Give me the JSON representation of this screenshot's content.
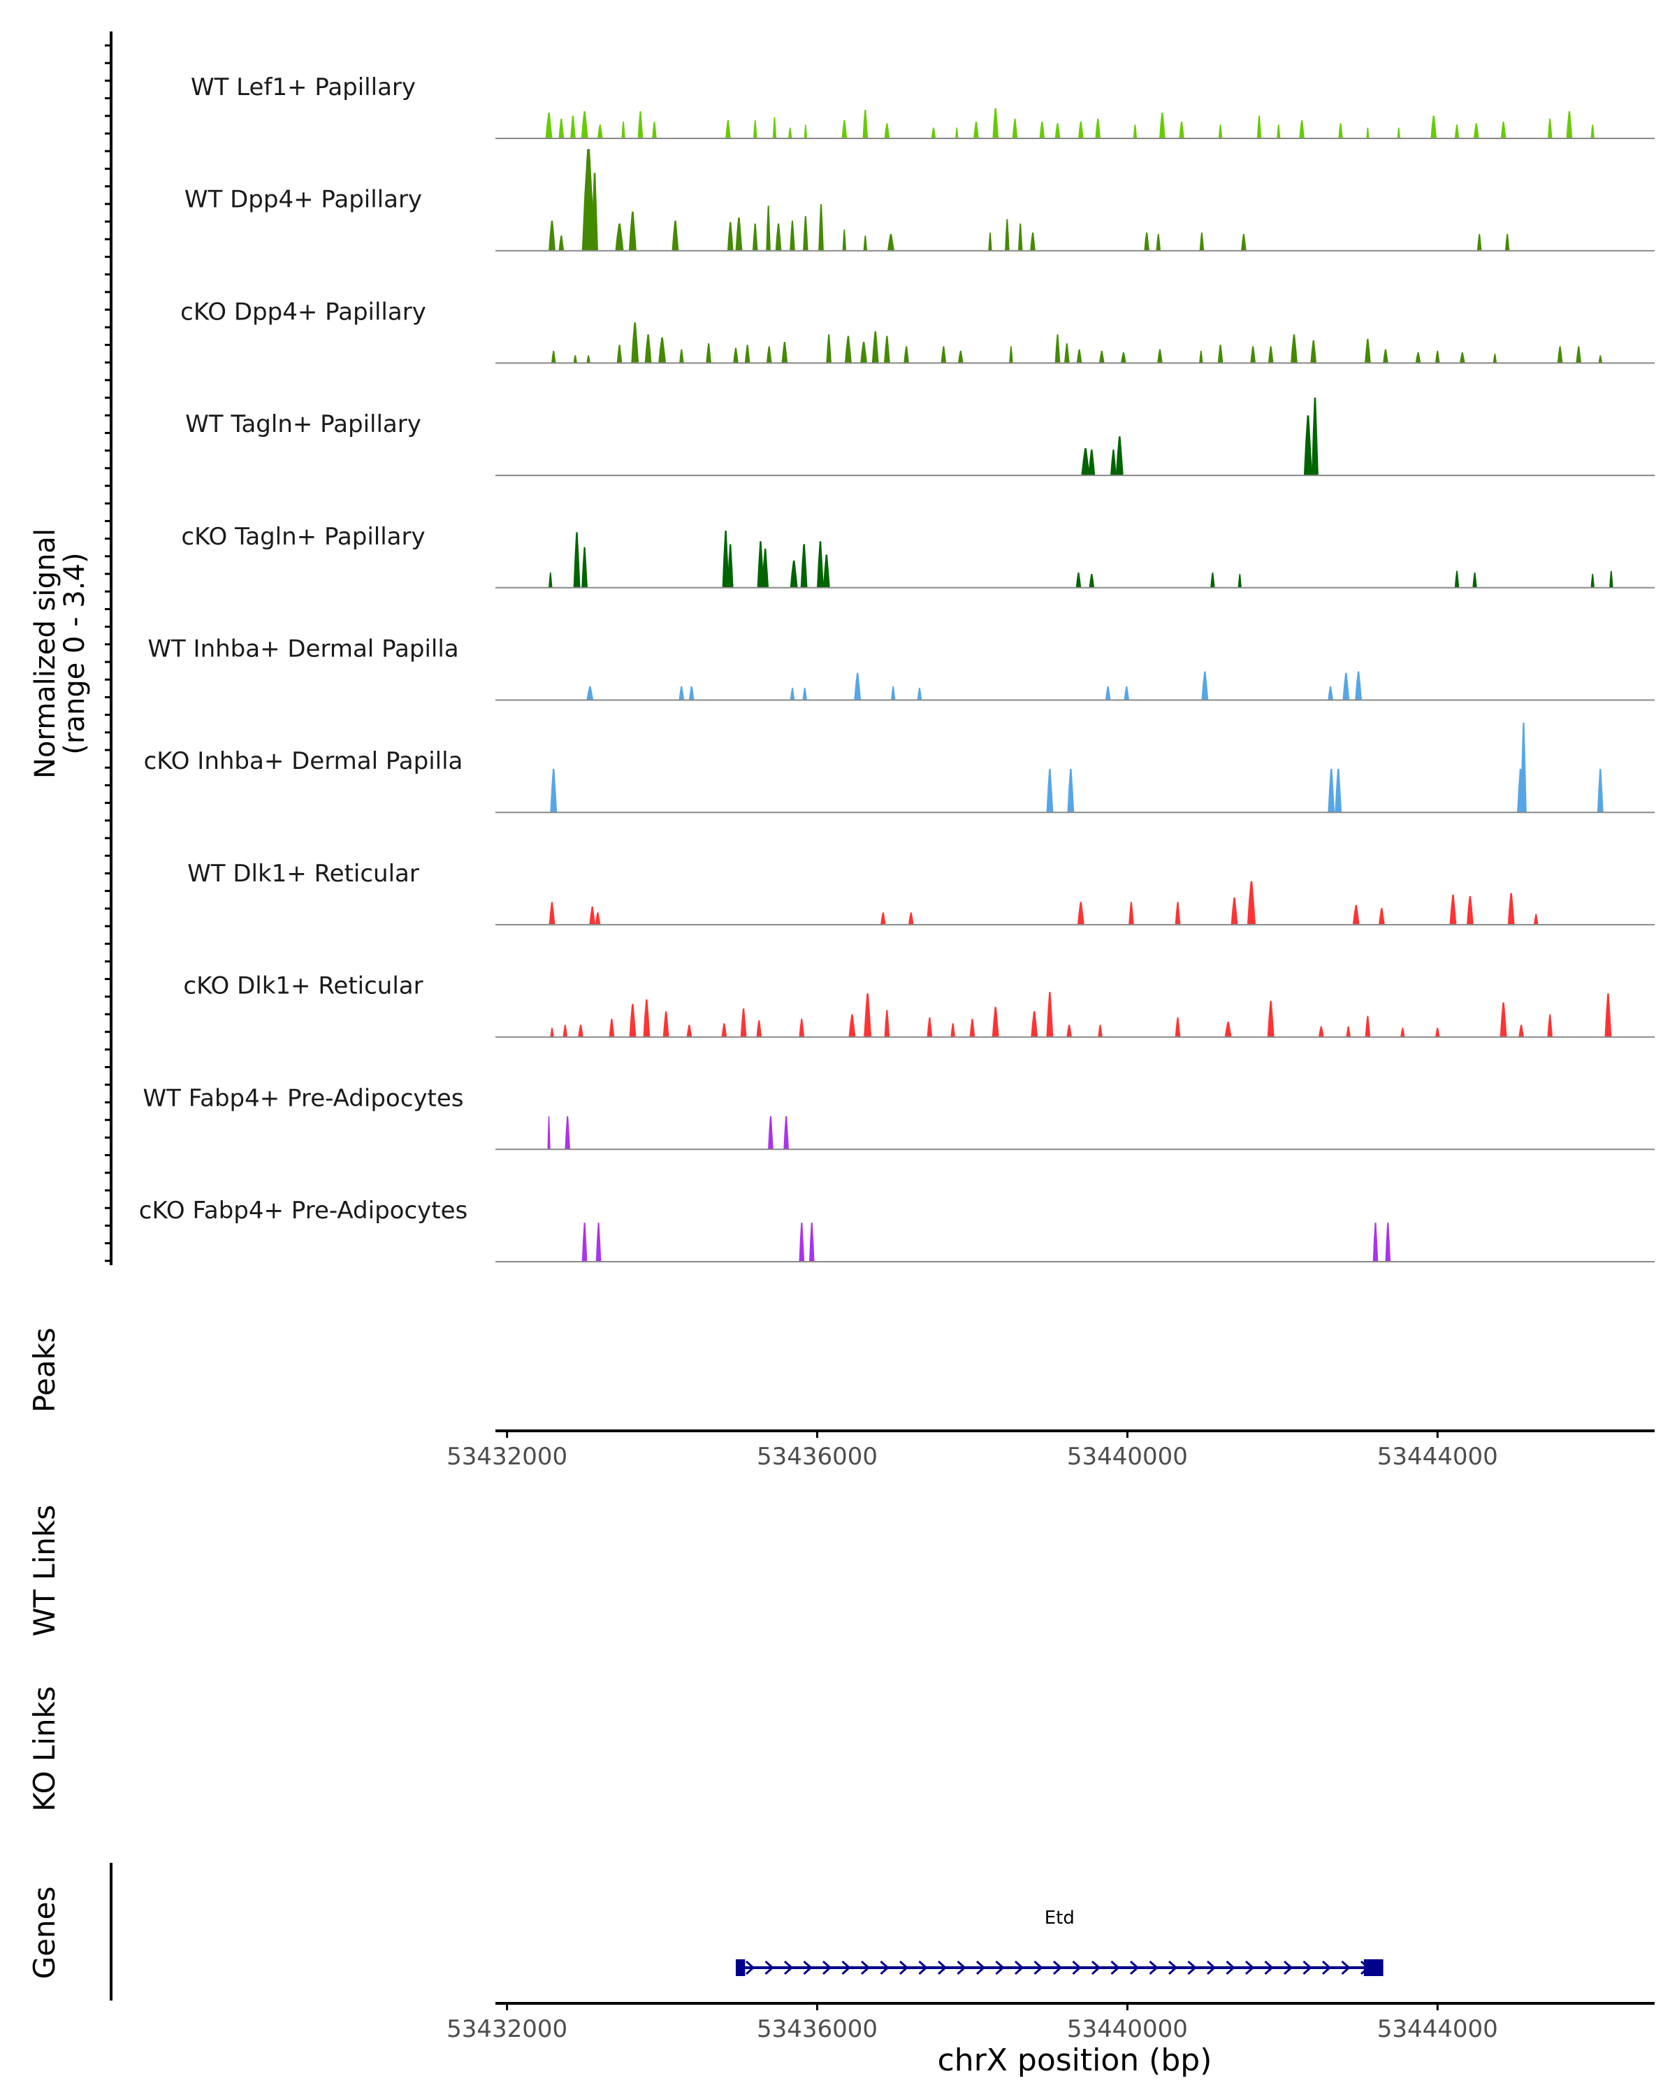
{
  "chart_data": {
    "type": "area",
    "title": "",
    "y_axis_title": "Normalized signal",
    "y_range_label": "(range 0 - 3.4)",
    "y_range": [
      0,
      3.4
    ],
    "x_axis_title": "chrX position (bp)",
    "x_range": [
      53431850,
      53446800
    ],
    "x_ticks": [
      53432000,
      53436000,
      53440000,
      53444000
    ],
    "x_tick_labels": [
      "53432000",
      "53436000",
      "53440000",
      "53444000"
    ],
    "section_labels": {
      "peaks": "Peaks",
      "wt_links": "WT Links",
      "ko_links": "KO Links",
      "genes": "Genes"
    },
    "tracks": [
      {
        "name": "WT Lef1+ Papillary",
        "color": "#66cc00",
        "peaks": [
          [
            53432540,
            40,
            0.85
          ],
          [
            53432700,
            30,
            0.65
          ],
          [
            53432850,
            30,
            0.75
          ],
          [
            53433000,
            40,
            0.9
          ],
          [
            53433200,
            30,
            0.45
          ],
          [
            53433500,
            20,
            0.55
          ],
          [
            53433720,
            30,
            0.9
          ],
          [
            53433900,
            25,
            0.55
          ],
          [
            53434850,
            30,
            0.6
          ],
          [
            53435200,
            20,
            0.6
          ],
          [
            53435450,
            20,
            0.7
          ],
          [
            53435650,
            20,
            0.35
          ],
          [
            53435850,
            15,
            0.45
          ],
          [
            53436350,
            30,
            0.6
          ],
          [
            53436620,
            30,
            0.95
          ],
          [
            53436900,
            30,
            0.5
          ],
          [
            53437500,
            25,
            0.35
          ],
          [
            53437800,
            15,
            0.35
          ],
          [
            53438050,
            30,
            0.55
          ],
          [
            53438300,
            35,
            1.0
          ],
          [
            53438550,
            30,
            0.65
          ],
          [
            53438900,
            30,
            0.55
          ],
          [
            53439100,
            30,
            0.5
          ],
          [
            53439400,
            30,
            0.55
          ],
          [
            53439620,
            30,
            0.65
          ],
          [
            53440100,
            20,
            0.45
          ],
          [
            53440450,
            35,
            0.85
          ],
          [
            53440700,
            30,
            0.55
          ],
          [
            53441200,
            20,
            0.45
          ],
          [
            53441700,
            25,
            0.75
          ],
          [
            53441950,
            20,
            0.45
          ],
          [
            53442250,
            30,
            0.6
          ],
          [
            53442750,
            25,
            0.5
          ],
          [
            53443100,
            15,
            0.35
          ],
          [
            53443500,
            15,
            0.35
          ],
          [
            53443950,
            35,
            0.75
          ],
          [
            53444250,
            25,
            0.45
          ],
          [
            53444500,
            30,
            0.5
          ],
          [
            53444850,
            30,
            0.55
          ],
          [
            53445450,
            25,
            0.65
          ],
          [
            53445700,
            35,
            0.9
          ],
          [
            53446000,
            20,
            0.45
          ]
        ]
      },
      {
        "name": "WT Dpp4+ Papillary",
        "color": "#448a00",
        "peaks": [
          [
            53432580,
            40,
            1.0
          ],
          [
            53432700,
            30,
            0.5
          ],
          [
            53433050,
            80,
            3.4
          ],
          [
            53433130,
            40,
            2.6
          ],
          [
            53433450,
            50,
            0.9
          ],
          [
            53433620,
            45,
            1.3
          ],
          [
            53434170,
            40,
            1.0
          ],
          [
            53434880,
            35,
            0.95
          ],
          [
            53434990,
            40,
            1.1
          ],
          [
            53435200,
            30,
            0.9
          ],
          [
            53435370,
            25,
            1.5
          ],
          [
            53435500,
            35,
            0.9
          ],
          [
            53435680,
            30,
            1.0
          ],
          [
            53435850,
            30,
            1.15
          ],
          [
            53436050,
            30,
            1.55
          ],
          [
            53436350,
            20,
            0.7
          ],
          [
            53436620,
            20,
            0.5
          ],
          [
            53436950,
            40,
            0.55
          ],
          [
            53438230,
            20,
            0.6
          ],
          [
            53438450,
            25,
            1.05
          ],
          [
            53438620,
            25,
            0.9
          ],
          [
            53438780,
            30,
            0.6
          ],
          [
            53440250,
            30,
            0.6
          ],
          [
            53440400,
            25,
            0.55
          ],
          [
            53440960,
            25,
            0.6
          ],
          [
            53441500,
            30,
            0.55
          ],
          [
            53444540,
            25,
            0.55
          ],
          [
            53444900,
            25,
            0.55
          ]
        ]
      },
      {
        "name": "cKO Dpp4+ Papillary",
        "color": "#448a00",
        "peaks": [
          [
            53432600,
            25,
            0.4
          ],
          [
            53432880,
            20,
            0.25
          ],
          [
            53433050,
            20,
            0.25
          ],
          [
            53433450,
            30,
            0.6
          ],
          [
            53433650,
            45,
            1.35
          ],
          [
            53433820,
            40,
            0.95
          ],
          [
            53434000,
            45,
            0.85
          ],
          [
            53434250,
            25,
            0.45
          ],
          [
            53434600,
            30,
            0.65
          ],
          [
            53434950,
            30,
            0.5
          ],
          [
            53435100,
            30,
            0.6
          ],
          [
            53435380,
            30,
            0.55
          ],
          [
            53435580,
            35,
            0.7
          ],
          [
            53436150,
            30,
            0.95
          ],
          [
            53436400,
            40,
            0.9
          ],
          [
            53436600,
            40,
            0.7
          ],
          [
            53436750,
            40,
            1.05
          ],
          [
            53436900,
            35,
            0.9
          ],
          [
            53437150,
            30,
            0.55
          ],
          [
            53437630,
            30,
            0.55
          ],
          [
            53437850,
            30,
            0.4
          ],
          [
            53438500,
            20,
            0.55
          ],
          [
            53439100,
            30,
            0.95
          ],
          [
            53439220,
            30,
            0.65
          ],
          [
            53439380,
            30,
            0.45
          ],
          [
            53439670,
            30,
            0.4
          ],
          [
            53439950,
            30,
            0.35
          ],
          [
            53440420,
            30,
            0.45
          ],
          [
            53440950,
            20,
            0.4
          ],
          [
            53441200,
            30,
            0.6
          ],
          [
            53441620,
            30,
            0.55
          ],
          [
            53441850,
            30,
            0.55
          ],
          [
            53442150,
            40,
            0.95
          ],
          [
            53442400,
            35,
            0.75
          ],
          [
            53443100,
            35,
            0.8
          ],
          [
            53443330,
            30,
            0.45
          ],
          [
            53443750,
            30,
            0.35
          ],
          [
            53444000,
            25,
            0.4
          ],
          [
            53444320,
            30,
            0.35
          ],
          [
            53444740,
            20,
            0.3
          ],
          [
            53445580,
            30,
            0.55
          ],
          [
            53445820,
            30,
            0.55
          ],
          [
            53446100,
            20,
            0.25
          ]
        ]
      },
      {
        "name": "WT Tagln+ Papillary",
        "color": "#006400",
        "peaks": [
          [
            53439460,
            50,
            0.9
          ],
          [
            53439540,
            40,
            0.85
          ],
          [
            53439820,
            35,
            0.85
          ],
          [
            53439900,
            45,
            1.3
          ],
          [
            53442330,
            50,
            2.0
          ],
          [
            53442420,
            40,
            2.6
          ]
        ]
      },
      {
        "name": "cKO Tagln+ Papillary",
        "color": "#006400",
        "peaks": [
          [
            53432560,
            20,
            0.5
          ],
          [
            53432900,
            40,
            1.85
          ],
          [
            53433000,
            35,
            1.35
          ],
          [
            53434820,
            40,
            1.9
          ],
          [
            53434880,
            35,
            1.45
          ],
          [
            53435270,
            40,
            1.55
          ],
          [
            53435330,
            40,
            1.3
          ],
          [
            53435700,
            45,
            0.9
          ],
          [
            53435830,
            40,
            1.45
          ],
          [
            53436040,
            40,
            1.55
          ],
          [
            53436120,
            40,
            1.1
          ],
          [
            53439370,
            30,
            0.5
          ],
          [
            53439540,
            30,
            0.45
          ],
          [
            53441100,
            25,
            0.5
          ],
          [
            53441450,
            20,
            0.45
          ],
          [
            53444250,
            25,
            0.55
          ],
          [
            53444480,
            25,
            0.5
          ],
          [
            53446000,
            20,
            0.45
          ],
          [
            53446240,
            20,
            0.55
          ]
        ]
      },
      {
        "name": "WT Inhba+ Dermal Papilla",
        "color": "#56a6e6",
        "peaks": [
          [
            53433070,
            40,
            0.45
          ],
          [
            53434250,
            30,
            0.45
          ],
          [
            53434380,
            30,
            0.45
          ],
          [
            53435680,
            25,
            0.4
          ],
          [
            53435840,
            25,
            0.4
          ],
          [
            53436520,
            40,
            0.9
          ],
          [
            53436980,
            25,
            0.45
          ],
          [
            53437320,
            25,
            0.4
          ],
          [
            53439750,
            30,
            0.45
          ],
          [
            53439990,
            30,
            0.45
          ],
          [
            53441000,
            40,
            0.95
          ],
          [
            53442620,
            30,
            0.45
          ],
          [
            53442820,
            40,
            0.9
          ],
          [
            53442980,
            40,
            0.95
          ]
        ]
      },
      {
        "name": "cKO Inhba+ Dermal Papilla",
        "color": "#56a6e6",
        "peaks": [
          [
            53432600,
            40,
            1.45
          ],
          [
            53439000,
            40,
            1.45
          ],
          [
            53439270,
            40,
            1.45
          ],
          [
            53442630,
            40,
            1.45
          ],
          [
            53442720,
            40,
            1.45
          ],
          [
            53445070,
            40,
            1.45
          ],
          [
            53445110,
            35,
            3.0
          ],
          [
            53446100,
            35,
            1.45
          ]
        ]
      },
      {
        "name": "WT Dlk1+ Reticular",
        "color": "#ff3333",
        "peaks": [
          [
            53432580,
            35,
            0.75
          ],
          [
            53433100,
            35,
            0.6
          ],
          [
            53433170,
            30,
            0.4
          ],
          [
            53436850,
            30,
            0.4
          ],
          [
            53437210,
            30,
            0.4
          ],
          [
            53439400,
            40,
            0.75
          ],
          [
            53440050,
            30,
            0.75
          ],
          [
            53440650,
            30,
            0.75
          ],
          [
            53441380,
            40,
            0.9
          ],
          [
            53441600,
            50,
            1.45
          ],
          [
            53442950,
            40,
            0.65
          ],
          [
            53443280,
            35,
            0.55
          ],
          [
            53444200,
            40,
            1.0
          ],
          [
            53444420,
            40,
            0.95
          ],
          [
            53444950,
            40,
            1.05
          ],
          [
            53445270,
            25,
            0.35
          ]
        ]
      },
      {
        "name": "cKO Dlk1+ Reticular",
        "color": "#ff3333",
        "peaks": [
          [
            53432580,
            20,
            0.3
          ],
          [
            53432750,
            25,
            0.4
          ],
          [
            53432950,
            30,
            0.4
          ],
          [
            53433350,
            30,
            0.6
          ],
          [
            53433620,
            40,
            1.1
          ],
          [
            53433800,
            40,
            1.25
          ],
          [
            53434050,
            35,
            0.85
          ],
          [
            53434350,
            30,
            0.4
          ],
          [
            53434800,
            30,
            0.45
          ],
          [
            53435050,
            35,
            0.95
          ],
          [
            53435250,
            30,
            0.55
          ],
          [
            53435800,
            30,
            0.6
          ],
          [
            53436450,
            40,
            0.75
          ],
          [
            53436650,
            45,
            1.45
          ],
          [
            53436900,
            30,
            0.9
          ],
          [
            53437450,
            30,
            0.65
          ],
          [
            53437750,
            25,
            0.45
          ],
          [
            53438000,
            30,
            0.6
          ],
          [
            53438300,
            40,
            1.0
          ],
          [
            53438800,
            40,
            0.85
          ],
          [
            53439000,
            40,
            1.5
          ],
          [
            53439250,
            30,
            0.4
          ],
          [
            53439650,
            25,
            0.4
          ],
          [
            53440650,
            30,
            0.65
          ],
          [
            53441300,
            40,
            0.5
          ],
          [
            53441850,
            40,
            1.2
          ],
          [
            53442500,
            30,
            0.35
          ],
          [
            53442850,
            25,
            0.35
          ],
          [
            53443100,
            30,
            0.7
          ],
          [
            53443550,
            25,
            0.3
          ],
          [
            53444000,
            25,
            0.3
          ],
          [
            53444850,
            40,
            1.15
          ],
          [
            53445080,
            30,
            0.4
          ],
          [
            53445450,
            30,
            0.75
          ],
          [
            53446200,
            40,
            1.45
          ]
        ]
      },
      {
        "name": "WT Fabp4+ Pre-Adipocytes",
        "color": "#aa33ee",
        "peaks": [
          [
            53432540,
            15,
            1.1
          ],
          [
            53432780,
            30,
            1.1
          ],
          [
            53435400,
            30,
            1.1
          ],
          [
            53435600,
            30,
            1.1
          ]
        ]
      },
      {
        "name": "cKO Fabp4+ Pre-Adipocytes",
        "color": "#aa33ee",
        "peaks": [
          [
            53433000,
            30,
            1.3
          ],
          [
            53433180,
            30,
            1.3
          ],
          [
            53435800,
            30,
            1.3
          ],
          [
            53435930,
            30,
            1.3
          ],
          [
            53443200,
            30,
            1.3
          ],
          [
            53443360,
            30,
            1.3
          ]
        ]
      }
    ],
    "gene": {
      "name": "Etd",
      "start": 53434950,
      "end": 53443300,
      "strand": "+",
      "exons": [
        [
          53434950,
          53435070
        ],
        [
          53443050,
          53443300
        ]
      ],
      "color": "#00008b"
    }
  }
}
